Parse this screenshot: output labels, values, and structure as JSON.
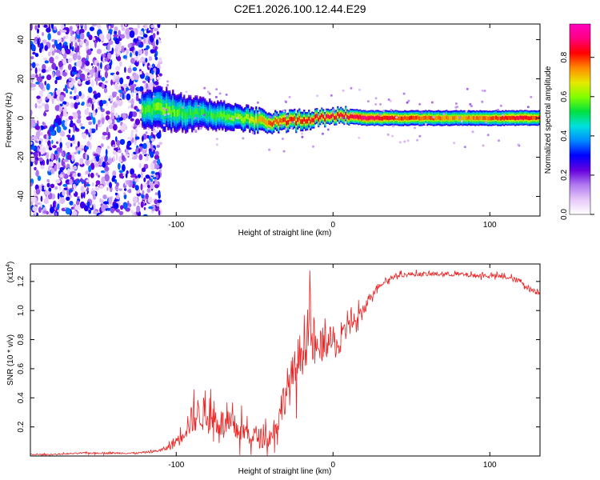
{
  "title": "C2E1.2026.100.12.44.E29",
  "chart_data": [
    {
      "type": "heatmap",
      "xlabel": "Height of straight line (km)",
      "ylabel": "Frequency (Hz)",
      "xlim": [
        -193,
        132
      ],
      "ylim": [
        -50,
        48
      ],
      "xticks": [
        -100,
        0,
        100
      ],
      "xtick_labels": [
        "-100",
        "0",
        "100"
      ],
      "yticks": [
        -40,
        -20,
        0,
        20,
        40
      ],
      "ytick_labels": [
        "-40",
        "-20",
        "0",
        "20",
        "40"
      ],
      "noise_region_x": [
        -193,
        -115
      ],
      "signal_ridge": {
        "x": [
          -120,
          -110,
          -100,
          -90,
          -80,
          -70,
          -60,
          -50,
          -40,
          -30,
          -20,
          -10,
          0,
          10,
          20,
          40,
          60,
          80,
          100,
          120,
          132
        ],
        "y": [
          4,
          5,
          3,
          2,
          2,
          1,
          0,
          -1,
          -2,
          -2,
          -1,
          0,
          1,
          1,
          0,
          0,
          0,
          0,
          0,
          0,
          0
        ],
        "width": [
          8,
          9,
          8,
          7,
          6,
          6,
          5,
          5,
          4,
          4,
          4,
          3,
          3,
          3,
          3,
          3,
          3,
          3,
          3,
          3,
          3
        ],
        "amplitude": [
          0.5,
          0.55,
          0.5,
          0.45,
          0.45,
          0.5,
          0.55,
          0.65,
          0.75,
          0.8,
          0.8,
          0.85,
          0.85,
          0.85,
          0.9,
          0.8,
          0.75,
          0.7,
          0.75,
          0.85,
          0.75
        ]
      },
      "colorbar": {
        "label": "Normalized spectral amplitude",
        "range": [
          0,
          0.97
        ],
        "ticks": [
          0.0,
          0.2,
          0.4,
          0.6,
          0.8
        ],
        "tick_labels": [
          "0.0",
          "0.2",
          "0.4",
          "0.6",
          "0.8"
        ],
        "colors": [
          "#ffffff",
          "#e6c8f8",
          "#b07af0",
          "#6600dd",
          "#0000ff",
          "#0088ff",
          "#00e0e0",
          "#00e040",
          "#80ff00",
          "#e8e800",
          "#ff8800",
          "#ff0000",
          "#ff0080",
          "#ff00c0"
        ]
      }
    },
    {
      "type": "line",
      "xlabel": "Height of straight line (km)",
      "ylabel": "SNR (10 * v/v)",
      "y_scale_note": "(x10",
      "y_scale_exp": "4",
      "xlim": [
        -193,
        132
      ],
      "ylim": [
        0.0,
        1.32
      ],
      "xticks": [
        -100,
        0,
        100
      ],
      "xtick_labels": [
        "-100",
        "0",
        "100"
      ],
      "yticks": [
        0.2,
        0.4,
        0.6,
        0.8,
        1.0,
        1.2
      ],
      "ytick_labels": [
        "0.2",
        "0.4",
        "0.6",
        "0.8",
        "1.0",
        "1.2"
      ],
      "series": [
        {
          "name": "SNR",
          "color": "#ee2222",
          "x": [
            -193,
            -180,
            -160,
            -140,
            -125,
            -115,
            -110,
            -105,
            -100,
            -95,
            -90,
            -85,
            -80,
            -75,
            -70,
            -65,
            -60,
            -55,
            -50,
            -45,
            -40,
            -35,
            -30,
            -25,
            -20,
            -18,
            -15,
            -12,
            -10,
            -5,
            0,
            5,
            10,
            15,
            20,
            25,
            30,
            35,
            40,
            50,
            60,
            70,
            80,
            90,
            100,
            110,
            120,
            125,
            132
          ],
          "y": [
            0.01,
            0.01,
            0.02,
            0.02,
            0.02,
            0.03,
            0.04,
            0.06,
            0.1,
            0.18,
            0.25,
            0.3,
            0.27,
            0.25,
            0.22,
            0.2,
            0.18,
            0.16,
            0.14,
            0.12,
            0.13,
            0.25,
            0.45,
            0.55,
            0.72,
            0.8,
            0.85,
            0.78,
            0.7,
            0.8,
            0.78,
            0.75,
            0.95,
            0.9,
            1.02,
            1.12,
            1.18,
            1.21,
            1.24,
            1.25,
            1.25,
            1.25,
            1.25,
            1.24,
            1.24,
            1.23,
            1.2,
            1.15,
            1.12
          ],
          "noise_amp": [
            0.004,
            0.004,
            0.005,
            0.006,
            0.006,
            0.008,
            0.01,
            0.02,
            0.05,
            0.08,
            0.1,
            0.12,
            0.12,
            0.11,
            0.1,
            0.1,
            0.09,
            0.08,
            0.08,
            0.07,
            0.07,
            0.1,
            0.14,
            0.16,
            0.18,
            0.2,
            0.2,
            0.18,
            0.15,
            0.1,
            0.1,
            0.1,
            0.12,
            0.08,
            0.05,
            0.03,
            0.02,
            0.02,
            0.015,
            0.015,
            0.015,
            0.015,
            0.015,
            0.015,
            0.015,
            0.015,
            0.02,
            0.02,
            0.02
          ]
        }
      ]
    }
  ]
}
